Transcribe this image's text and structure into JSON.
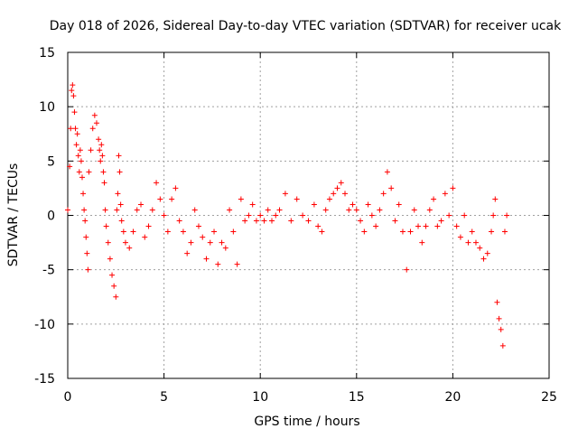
{
  "chart_data": {
    "type": "scatter",
    "title": "Day 018 of 2026, Sidereal Day-to-day VTEC variation (SDTVAR) for receiver ucak",
    "xlabel": "GPS time / hours",
    "ylabel": "SDTVAR / TECUs",
    "xlim": [
      0,
      25
    ],
    "ylim": [
      -15,
      15
    ],
    "x_ticks": [
      0,
      5,
      10,
      15,
      20,
      25
    ],
    "y_ticks": [
      -15,
      -10,
      -5,
      0,
      5,
      10,
      15
    ],
    "x_tick_labels": [
      "0",
      "5",
      "10",
      "15",
      "20",
      "25"
    ],
    "y_tick_labels": [
      "-15",
      "-10",
      "-5",
      "0",
      "5",
      "10",
      "15"
    ],
    "grid": true,
    "marker": "+",
    "series": [
      {
        "name": "SDTVAR",
        "color": "#ff0000",
        "x": [
          0.0,
          0.1,
          0.15,
          0.2,
          0.25,
          0.3,
          0.35,
          0.4,
          0.45,
          0.5,
          0.55,
          0.6,
          0.65,
          0.7,
          0.75,
          0.8,
          0.85,
          0.9,
          0.95,
          1.0,
          1.05,
          1.1,
          1.2,
          1.3,
          1.4,
          1.5,
          1.6,
          1.65,
          1.7,
          1.75,
          1.8,
          1.85,
          1.9,
          1.95,
          2.0,
          2.1,
          2.2,
          2.3,
          2.4,
          2.5,
          2.55,
          2.6,
          2.65,
          2.7,
          2.75,
          2.8,
          2.9,
          3.0,
          3.2,
          3.4,
          3.6,
          3.8,
          4.0,
          4.2,
          4.4,
          4.6,
          4.8,
          5.0,
          5.2,
          5.4,
          5.6,
          5.8,
          6.0,
          6.2,
          6.4,
          6.6,
          6.8,
          7.0,
          7.2,
          7.4,
          7.6,
          7.8,
          8.0,
          8.2,
          8.4,
          8.6,
          8.8,
          9.0,
          9.2,
          9.4,
          9.6,
          9.8,
          10.0,
          10.2,
          10.4,
          10.6,
          10.8,
          11.0,
          11.3,
          11.6,
          11.9,
          12.2,
          12.5,
          12.8,
          13.0,
          13.2,
          13.4,
          13.6,
          13.8,
          14.0,
          14.2,
          14.4,
          14.6,
          14.8,
          15.0,
          15.2,
          15.4,
          15.6,
          15.8,
          16.0,
          16.2,
          16.4,
          16.6,
          16.8,
          17.0,
          17.2,
          17.4,
          17.6,
          17.8,
          18.0,
          18.2,
          18.4,
          18.6,
          18.8,
          19.0,
          19.2,
          19.4,
          19.6,
          19.8,
          20.0,
          20.2,
          20.4,
          20.6,
          20.8,
          21.0,
          21.2,
          21.4,
          21.6,
          21.8,
          22.0,
          22.1,
          22.2,
          22.3,
          22.4,
          22.5,
          22.6,
          22.7,
          22.8
        ],
        "y": [
          0.5,
          4.5,
          8.0,
          11.5,
          12.0,
          11.0,
          9.5,
          8.0,
          6.5,
          7.5,
          5.5,
          4.0,
          6.0,
          5.0,
          3.5,
          2.0,
          0.5,
          -0.5,
          -2.0,
          -3.5,
          -5.0,
          4.0,
          6.0,
          8.0,
          9.2,
          8.5,
          7.0,
          6.0,
          5.0,
          6.5,
          5.5,
          4.0,
          3.0,
          0.5,
          -1.0,
          -2.5,
          -4.0,
          -5.5,
          -6.5,
          -7.5,
          0.5,
          2.0,
          5.5,
          4.0,
          1.0,
          -0.5,
          -1.5,
          -2.5,
          -3.0,
          -1.5,
          0.5,
          1.0,
          -2.0,
          -1.0,
          0.5,
          3.0,
          1.5,
          0.0,
          -1.5,
          1.5,
          2.5,
          -0.5,
          -1.5,
          -3.5,
          -2.5,
          0.5,
          -1.0,
          -2.0,
          -4.0,
          -2.5,
          -1.5,
          -4.5,
          -2.5,
          -3.0,
          0.5,
          -1.5,
          -4.5,
          1.5,
          -0.5,
          0.0,
          1.0,
          -0.5,
          0.0,
          -0.5,
          0.5,
          -0.5,
          0.0,
          0.5,
          2.0,
          -0.5,
          1.5,
          0.0,
          -0.5,
          1.0,
          -1.0,
          -1.5,
          0.5,
          1.5,
          2.0,
          2.5,
          3.0,
          2.0,
          0.5,
          1.0,
          0.5,
          -0.5,
          -1.5,
          1.0,
          0.0,
          -1.0,
          0.5,
          2.0,
          4.0,
          2.5,
          -0.5,
          1.0,
          -1.5,
          -5.0,
          -1.5,
          0.5,
          -1.0,
          -2.5,
          -1.0,
          0.5,
          1.5,
          -1.0,
          -0.5,
          2.0,
          0.0,
          2.5,
          -1.0,
          -2.0,
          0.0,
          -2.5,
          -1.5,
          -2.5,
          -3.0,
          -4.0,
          -3.5,
          -1.5,
          0.0,
          1.5,
          -8.0,
          -9.5,
          -10.5,
          -12.0,
          -1.5,
          0.0
        ]
      }
    ]
  }
}
